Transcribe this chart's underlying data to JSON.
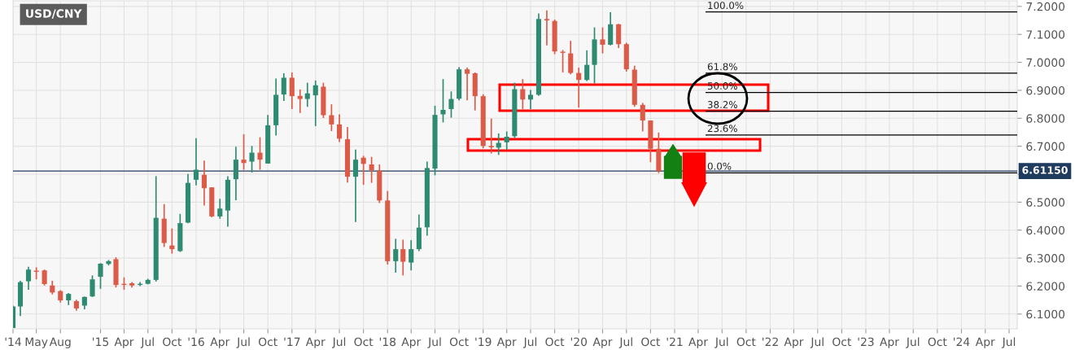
{
  "chart_data": {
    "type": "candlestick",
    "title": "USD/CNY",
    "x": [
      "2014-02",
      "2014-03",
      "2014-04",
      "2014-05",
      "2014-06",
      "2014-07",
      "2014-08",
      "2014-09",
      "2014-10",
      "2014-11",
      "2014-12",
      "2015-01",
      "2015-02",
      "2015-03",
      "2015-04",
      "2015-05",
      "2015-06",
      "2015-07",
      "2015-08",
      "2015-09",
      "2015-10",
      "2015-11",
      "2015-12",
      "2016-01",
      "2016-02",
      "2016-03",
      "2016-04",
      "2016-05",
      "2016-06",
      "2016-07",
      "2016-08",
      "2016-09",
      "2016-10",
      "2016-11",
      "2016-12",
      "2017-01",
      "2017-02",
      "2017-03",
      "2017-04",
      "2017-05",
      "2017-06",
      "2017-07",
      "2017-08",
      "2017-09",
      "2017-10",
      "2017-11",
      "2017-12",
      "2018-01",
      "2018-02",
      "2018-03",
      "2018-04",
      "2018-05",
      "2018-06",
      "2018-07",
      "2018-08",
      "2018-09",
      "2018-10",
      "2018-11",
      "2018-12",
      "2019-01",
      "2019-02",
      "2019-03",
      "2019-04",
      "2019-05",
      "2019-06",
      "2019-07",
      "2019-08",
      "2019-09",
      "2019-10",
      "2019-11",
      "2019-12",
      "2020-01",
      "2020-02",
      "2020-03",
      "2020-04",
      "2020-05",
      "2020-06",
      "2020-07",
      "2020-08",
      "2020-09",
      "2020-10",
      "2020-11"
    ],
    "ohlc": [
      [
        6.05,
        6.13,
        6.05,
        6.127
      ],
      [
        6.127,
        6.219,
        6.093,
        6.214
      ],
      [
        6.217,
        6.269,
        6.187,
        6.259
      ],
      [
        6.255,
        6.267,
        6.224,
        6.251
      ],
      [
        6.256,
        6.259,
        6.202,
        6.207
      ],
      [
        6.202,
        6.219,
        6.17,
        6.177
      ],
      [
        6.182,
        6.185,
        6.141,
        6.149
      ],
      [
        6.149,
        6.175,
        6.132,
        6.172
      ],
      [
        6.146,
        6.151,
        6.112,
        6.12
      ],
      [
        6.13,
        6.163,
        6.117,
        6.161
      ],
      [
        6.163,
        6.238,
        6.161,
        6.224
      ],
      [
        6.233,
        6.282,
        6.19,
        6.28
      ],
      [
        6.279,
        6.293,
        6.274,
        6.289
      ],
      [
        6.296,
        6.303,
        6.195,
        6.204
      ],
      [
        6.208,
        6.231,
        6.187,
        6.204
      ],
      [
        6.21,
        6.214,
        6.195,
        6.202
      ],
      [
        6.204,
        6.214,
        6.2,
        6.208
      ],
      [
        6.208,
        6.226,
        6.206,
        6.222
      ],
      [
        6.222,
        6.593,
        6.216,
        6.444
      ],
      [
        6.441,
        6.493,
        6.34,
        6.354
      ],
      [
        6.345,
        6.406,
        6.316,
        6.332
      ],
      [
        6.325,
        6.458,
        6.322,
        6.425
      ],
      [
        6.427,
        6.601,
        6.425,
        6.569
      ],
      [
        6.58,
        6.729,
        6.56,
        6.616
      ],
      [
        6.598,
        6.649,
        6.488,
        6.55
      ],
      [
        6.553,
        6.553,
        6.446,
        6.449
      ],
      [
        6.449,
        6.512,
        6.441,
        6.477
      ],
      [
        6.47,
        6.593,
        6.412,
        6.58
      ],
      [
        6.582,
        6.698,
        6.507,
        6.652
      ],
      [
        6.652,
        6.743,
        6.616,
        6.64
      ],
      [
        6.645,
        6.701,
        6.606,
        6.677
      ],
      [
        6.677,
        6.732,
        6.616,
        6.652
      ],
      [
        6.638,
        6.812,
        6.638,
        6.775
      ],
      [
        6.775,
        6.942,
        6.738,
        6.884
      ],
      [
        6.885,
        6.961,
        6.862,
        6.945
      ],
      [
        6.945,
        6.964,
        6.833,
        6.879
      ],
      [
        6.88,
        6.903,
        6.819,
        6.869
      ],
      [
        6.869,
        6.927,
        6.841,
        6.889
      ],
      [
        6.882,
        6.935,
        6.772,
        6.918
      ],
      [
        6.913,
        6.927,
        6.801,
        6.811
      ],
      [
        6.811,
        6.85,
        6.754,
        6.778
      ],
      [
        6.778,
        6.814,
        6.715,
        6.727
      ],
      [
        6.725,
        6.769,
        6.57,
        6.591
      ],
      [
        6.591,
        6.688,
        6.429,
        6.652
      ],
      [
        6.659,
        6.666,
        6.562,
        6.637
      ],
      [
        6.635,
        6.662,
        6.569,
        6.614
      ],
      [
        6.613,
        6.635,
        6.497,
        6.506
      ],
      [
        6.506,
        6.54,
        6.277,
        6.289
      ],
      [
        6.289,
        6.369,
        6.248,
        6.332
      ],
      [
        6.332,
        6.366,
        6.238,
        6.287
      ],
      [
        6.284,
        6.364,
        6.256,
        6.332
      ],
      [
        6.332,
        6.456,
        6.325,
        6.409
      ],
      [
        6.41,
        6.645,
        6.38,
        6.622
      ],
      [
        6.62,
        6.845,
        6.596,
        6.812
      ],
      [
        6.814,
        6.94,
        6.785,
        6.83
      ],
      [
        6.833,
        6.896,
        6.802,
        6.869
      ],
      [
        6.87,
        6.983,
        6.864,
        6.975
      ],
      [
        6.975,
        6.981,
        6.864,
        6.959
      ],
      [
        6.961,
        6.964,
        6.828,
        6.879
      ],
      [
        6.879,
        6.886,
        6.693,
        6.701
      ],
      [
        6.701,
        6.799,
        6.674,
        6.696
      ],
      [
        6.695,
        6.746,
        6.669,
        6.712
      ],
      [
        6.714,
        6.753,
        6.688,
        6.734
      ],
      [
        6.736,
        6.927,
        6.73,
        6.904
      ],
      [
        6.904,
        6.94,
        6.833,
        6.867
      ],
      [
        6.867,
        6.901,
        6.833,
        6.884
      ],
      [
        6.884,
        7.175,
        6.88,
        7.155
      ],
      [
        7.155,
        7.186,
        7.061,
        7.15
      ],
      [
        7.148,
        7.153,
        7.029,
        7.039
      ],
      [
        7.038,
        7.044,
        6.964,
        7.034
      ],
      [
        7.032,
        7.077,
        6.957,
        6.962
      ],
      [
        6.962,
        6.981,
        6.838,
        6.937
      ],
      [
        6.937,
        7.043,
        6.933,
        6.991
      ],
      [
        6.991,
        7.125,
        6.925,
        7.082
      ],
      [
        7.082,
        7.125,
        7.032,
        7.063
      ],
      [
        7.063,
        7.179,
        7.061,
        7.136
      ],
      [
        7.136,
        7.138,
        7.051,
        7.065
      ],
      [
        7.065,
        7.07,
        6.967,
        6.975
      ],
      [
        6.974,
        6.988,
        6.841,
        6.848
      ],
      [
        6.848,
        6.855,
        6.753,
        6.792
      ],
      [
        6.792,
        6.792,
        6.643,
        6.691
      ],
      [
        6.691,
        6.749,
        6.604,
        6.6115
      ]
    ],
    "colors": [
      "#2e8b72",
      "#2e8b72",
      "#2e8b72",
      "#dc5a48",
      "#dc5a48",
      "#dc5a48",
      "#dc5a48",
      "#2e8b72",
      "#dc5a48",
      "#2e8b72",
      "#2e8b72",
      "#2e8b72",
      "#2e8b72",
      "#dc5a48",
      "#dc5a48",
      "#dc5a48",
      "#2e8b72",
      "#2e8b72",
      "#2e8b72",
      "#dc5a48",
      "#dc5a48",
      "#2e8b72",
      "#2e8b72",
      "#2e8b72",
      "#dc5a48",
      "#dc5a48",
      "#2e8b72",
      "#2e8b72",
      "#2e8b72",
      "#dc5a48",
      "#2e8b72",
      "#dc5a48",
      "#2e8b72",
      "#2e8b72",
      "#2e8b72",
      "#dc5a48",
      "#dc5a48",
      "#2e8b72",
      "#2e8b72",
      "#dc5a48",
      "#dc5a48",
      "#dc5a48",
      "#dc5a48",
      "#2e8b72",
      "#dc5a48",
      "#dc5a48",
      "#dc5a48",
      "#dc5a48",
      "#2e8b72",
      "#dc5a48",
      "#2e8b72",
      "#2e8b72",
      "#2e8b72",
      "#2e8b72",
      "#2e8b72",
      "#2e8b72",
      "#2e8b72",
      "#dc5a48",
      "#dc5a48",
      "#dc5a48",
      "#dc5a48",
      "#2e8b72",
      "#2e8b72",
      "#2e8b72",
      "#dc5a48",
      "#2e8b72",
      "#2e8b72",
      "#dc5a48",
      "#dc5a48",
      "#dc5a48",
      "#dc5a48",
      "#dc5a48",
      "#2e8b72",
      "#2e8b72",
      "#dc5a48",
      "#2e8b72",
      "#dc5a48",
      "#dc5a48",
      "#dc5a48",
      "#dc5a48",
      "#dc5a48",
      "#dc5a48"
    ],
    "xlim": [
      "2014-02-01",
      "2024-08-01"
    ],
    "xticks": [
      {
        "value": "2014-02-01",
        "label": "'14"
      },
      {
        "value": "2014-05-01",
        "label": "May"
      },
      {
        "value": "2014-08-01",
        "label": "Aug"
      },
      {
        "value": "2015-01-01",
        "label": "'15"
      },
      {
        "value": "2015-04-01",
        "label": "Apr"
      },
      {
        "value": "2015-07-01",
        "label": "Jul"
      },
      {
        "value": "2015-10-01",
        "label": "Oct"
      },
      {
        "value": "2016-01-01",
        "label": "'16"
      },
      {
        "value": "2016-04-01",
        "label": "Apr"
      },
      {
        "value": "2016-07-01",
        "label": "Jul"
      },
      {
        "value": "2016-10-01",
        "label": "Oct"
      },
      {
        "value": "2017-01-01",
        "label": "'17"
      },
      {
        "value": "2017-04-01",
        "label": "Apr"
      },
      {
        "value": "2017-07-01",
        "label": "Jul"
      },
      {
        "value": "2017-10-01",
        "label": "Oct"
      },
      {
        "value": "2018-01-01",
        "label": "'18"
      },
      {
        "value": "2018-04-01",
        "label": "Apr"
      },
      {
        "value": "2018-07-01",
        "label": "Jul"
      },
      {
        "value": "2018-10-01",
        "label": "Oct"
      },
      {
        "value": "2019-01-01",
        "label": "'19"
      },
      {
        "value": "2019-04-01",
        "label": "Apr"
      },
      {
        "value": "2019-07-01",
        "label": "Jul"
      },
      {
        "value": "2019-10-01",
        "label": "Oct"
      },
      {
        "value": "2020-01-01",
        "label": "'20"
      },
      {
        "value": "2020-04-01",
        "label": "Apr"
      },
      {
        "value": "2020-07-01",
        "label": "Jul"
      },
      {
        "value": "2020-10-01",
        "label": "Oct"
      },
      {
        "value": "2021-01-01",
        "label": "'21"
      },
      {
        "value": "2021-04-01",
        "label": "Apr"
      },
      {
        "value": "2021-07-01",
        "label": "Jul"
      },
      {
        "value": "2021-10-01",
        "label": "Oct"
      },
      {
        "value": "2022-01-01",
        "label": "'22"
      },
      {
        "value": "2022-04-01",
        "label": "Apr"
      },
      {
        "value": "2022-07-01",
        "label": "Jul"
      },
      {
        "value": "2022-10-01",
        "label": "Oct"
      },
      {
        "value": "2023-01-01",
        "label": "'23"
      },
      {
        "value": "2023-04-01",
        "label": "Apr"
      },
      {
        "value": "2023-07-01",
        "label": "Jul"
      },
      {
        "value": "2023-10-01",
        "label": "Oct"
      },
      {
        "value": "2024-01-01",
        "label": "'24"
      },
      {
        "value": "2024-04-01",
        "label": "Apr"
      },
      {
        "value": "2024-07-01",
        "label": "Jul"
      }
    ],
    "ylim": [
      6.047,
      7.22
    ],
    "yticks": [
      {
        "value": 6.1,
        "label": "6.1000"
      },
      {
        "value": 6.2,
        "label": "6.2000"
      },
      {
        "value": 6.3,
        "label": "6.3000"
      },
      {
        "value": 6.4,
        "label": "6.4000"
      },
      {
        "value": 6.5,
        "label": "6.5000"
      },
      {
        "value": 6.6,
        "label": null
      },
      {
        "value": 6.7,
        "label": "6.7000"
      },
      {
        "value": 6.8,
        "label": "6.8000"
      },
      {
        "value": 6.9,
        "label": "6.9000"
      },
      {
        "value": 7.0,
        "label": "7.0000"
      },
      {
        "value": 7.1,
        "label": "7.1000"
      },
      {
        "value": 7.2,
        "label": "7.2000"
      }
    ],
    "grid": true,
    "series": [
      {
        "type": "line",
        "x": [
          "2021-05-01",
          "2024-08-01"
        ],
        "values": [
          7.18,
          7.18
        ],
        "color": "#000000"
      },
      {
        "type": "line",
        "x": [
          "2021-05-01",
          "2024-08-01"
        ],
        "values": [
          6.961,
          6.961
        ],
        "color": "#000000"
      },
      {
        "type": "line",
        "x": [
          "2021-05-01",
          "2024-08-01"
        ],
        "values": [
          6.892,
          6.892
        ],
        "color": "#000000"
      },
      {
        "type": "line",
        "x": [
          "2021-05-01",
          "2024-08-01"
        ],
        "values": [
          6.825,
          6.825
        ],
        "color": "#000000"
      },
      {
        "type": "line",
        "x": [
          "2021-05-01",
          "2024-08-01"
        ],
        "values": [
          6.74,
          6.74
        ],
        "color": "#000000"
      },
      {
        "type": "line",
        "x": [
          "2021-05-01",
          "2024-08-01"
        ],
        "values": [
          6.605,
          6.605
        ],
        "color": "#000000"
      }
    ],
    "annotations": [
      {
        "text": "100.0%",
        "x": "2021-05-01",
        "y": 7.18
      },
      {
        "text": "61.8%",
        "x": "2021-05-01",
        "y": 6.961
      },
      {
        "text": "50.0%",
        "x": "2021-05-01",
        "y": 6.892
      },
      {
        "text": "38.2%",
        "x": "2021-05-01",
        "y": 6.825
      },
      {
        "text": "23.6%",
        "x": "2021-05-01",
        "y": 6.74
      },
      {
        "text": "0.0%",
        "x": "2021-05-01",
        "y": 6.605
      }
    ],
    "ref_lines": [
      {
        "axis": "y",
        "value": 6.6115,
        "label": "6.61150",
        "color": "#1f3b5e"
      }
    ]
  }
}
